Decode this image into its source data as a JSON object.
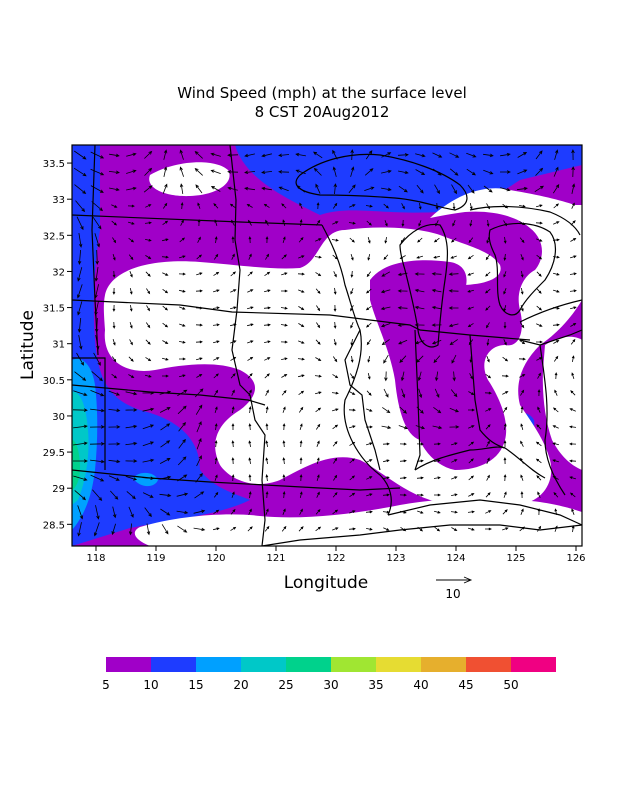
{
  "title": {
    "line1": "Wind Speed (mph) at the surface level",
    "line2": "8 CST 20Aug2012"
  },
  "map": {
    "xlabel": "Longitude",
    "ylabel": "Latitude",
    "x_ticks": [
      "118",
      "119",
      "120",
      "121",
      "122",
      "123",
      "124",
      "125",
      "126"
    ],
    "y_ticks": [
      "28.5",
      "29",
      "29.5",
      "30",
      "30.5",
      "31",
      "31.5",
      "32",
      "32.5",
      "33",
      "33.5"
    ],
    "x_range": [
      117.6,
      126.1
    ],
    "y_range": [
      28.2,
      33.75
    ],
    "reference_vector": {
      "value": "10"
    }
  },
  "colorbar": {
    "labels": [
      "5",
      "10",
      "15",
      "20",
      "25",
      "30",
      "35",
      "40",
      "45",
      "50"
    ],
    "colors": [
      "#a000c8",
      "#1e3cff",
      "#00a0ff",
      "#00c8c8",
      "#00d28c",
      "#a0e632",
      "#e6dc32",
      "#e6af2d",
      "#f05032",
      "#f00082"
    ]
  },
  "colors": {
    "band_5_10": "#a000c8",
    "band_10_15": "#1e3cff",
    "band_15_20": "#00a0ff",
    "band_20_25": "#00c8c8",
    "band_25_30": "#00d28c",
    "below_5": "#ffffff"
  }
}
